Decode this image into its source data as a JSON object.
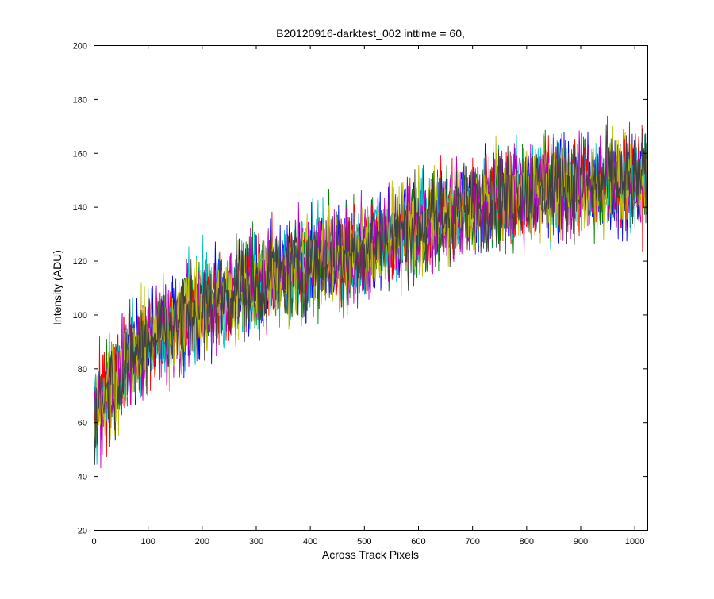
{
  "chart_data": {
    "type": "line",
    "title": "B20120916-darktest_002 inttime = 60,",
    "xlabel": "Across Track Pixels",
    "ylabel": "Intensity (ADU)",
    "xlim": [
      0,
      1024
    ],
    "ylim": [
      20,
      200
    ],
    "x_ticks": [
      0,
      100,
      200,
      300,
      400,
      500,
      600,
      700,
      800,
      900,
      1000
    ],
    "y_ticks": [
      20,
      40,
      60,
      80,
      100,
      120,
      140,
      160,
      180,
      200
    ],
    "grid": false,
    "legend": "none",
    "series_colors": [
      "#0000ff",
      "#008000",
      "#ff0000",
      "#00bfbf",
      "#bf00bf",
      "#bfbf00",
      "#404040"
    ],
    "trend": {
      "x": [
        0,
        50,
        100,
        200,
        300,
        400,
        500,
        600,
        700,
        800,
        900,
        1024
      ],
      "y": [
        63,
        80,
        90,
        103,
        112,
        119,
        124,
        133,
        140,
        146,
        148,
        150
      ]
    },
    "noise_amplitude_adu": 12,
    "series_count": 7,
    "points_per_series": 1024
  }
}
